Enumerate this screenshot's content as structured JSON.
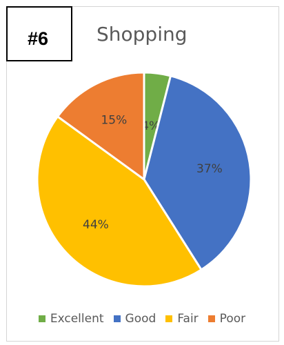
{
  "badge": {
    "label": "#6"
  },
  "chart_data": {
    "type": "pie",
    "title": "Shopping",
    "categories": [
      "Excellent",
      "Good",
      "Fair",
      "Poor"
    ],
    "values": [
      4,
      37,
      44,
      15
    ],
    "data_labels": [
      "4%",
      "37%",
      "44%",
      "15%"
    ],
    "colors": [
      "#70ad47",
      "#4472c4",
      "#ffc000",
      "#ed7d31"
    ],
    "legend_position": "bottom",
    "start_angle_deg": 0,
    "direction": "clockwise"
  }
}
